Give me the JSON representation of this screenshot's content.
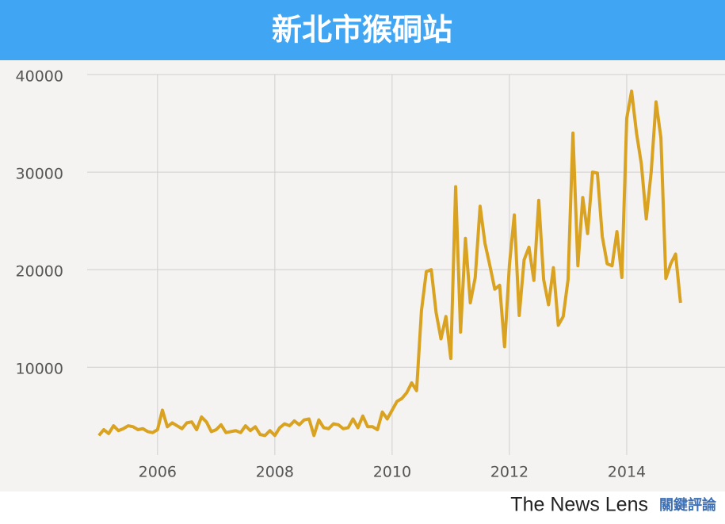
{
  "chart_data": {
    "type": "line",
    "title": "新北市猴硐站",
    "x": [
      2005.0,
      2005.083,
      2005.167,
      2005.25,
      2005.333,
      2005.417,
      2005.5,
      2005.583,
      2005.667,
      2005.75,
      2005.833,
      2005.917,
      2006.0,
      2006.083,
      2006.167,
      2006.25,
      2006.333,
      2006.417,
      2006.5,
      2006.583,
      2006.667,
      2006.75,
      2006.833,
      2006.917,
      2007.0,
      2007.083,
      2007.167,
      2007.25,
      2007.333,
      2007.417,
      2007.5,
      2007.583,
      2007.667,
      2007.75,
      2007.833,
      2007.917,
      2008.0,
      2008.083,
      2008.167,
      2008.25,
      2008.333,
      2008.417,
      2008.5,
      2008.583,
      2008.667,
      2008.75,
      2008.833,
      2008.917,
      2009.0,
      2009.083,
      2009.167,
      2009.25,
      2009.333,
      2009.417,
      2009.5,
      2009.583,
      2009.667,
      2009.75,
      2009.833,
      2009.917,
      2010.0,
      2010.083,
      2010.167,
      2010.25,
      2010.333,
      2010.417,
      2010.5,
      2010.583,
      2010.667,
      2010.75,
      2010.833,
      2010.917,
      2011.0,
      2011.083,
      2011.167,
      2011.25,
      2011.333,
      2011.417,
      2011.5,
      2011.583,
      2011.667,
      2011.75,
      2011.833,
      2011.917,
      2012.0,
      2012.083,
      2012.167,
      2012.25,
      2012.333,
      2012.417,
      2012.5,
      2012.583,
      2012.667,
      2012.75,
      2012.833,
      2012.917,
      2013.0,
      2013.083,
      2013.167,
      2013.25,
      2013.333,
      2013.417,
      2013.5,
      2013.583,
      2013.667,
      2013.75,
      2013.833,
      2013.917,
      2014.0,
      2014.083,
      2014.167,
      2014.25,
      2014.333,
      2014.417,
      2014.5,
      2014.583,
      2014.667,
      2014.75,
      2014.833,
      2014.917
    ],
    "series": [
      {
        "color": "#d9a321",
        "values": [
          3000,
          3600,
          3200,
          4000,
          3500,
          3700,
          4000,
          3900,
          3600,
          3700,
          3400,
          3300,
          3600,
          5600,
          3900,
          4300,
          4000,
          3700,
          4300,
          4400,
          3600,
          4900,
          4400,
          3400,
          3600,
          4100,
          3300,
          3400,
          3500,
          3300,
          4000,
          3500,
          3900,
          3100,
          3000,
          3500,
          3000,
          3800,
          4200,
          4000,
          4500,
          4100,
          4600,
          4700,
          3000,
          4600,
          3800,
          3700,
          4200,
          4100,
          3700,
          3800,
          4700,
          3800,
          5000,
          3900,
          3900,
          3600,
          5400,
          4700,
          5600,
          6500,
          6800,
          7400,
          8400,
          7600,
          15800,
          19800,
          20000,
          15600,
          12900,
          15200,
          10900,
          28500,
          13600,
          23200,
          16600,
          19200,
          26500,
          22700,
          20400,
          18000,
          18400,
          12100,
          20500,
          25600,
          15300,
          21000,
          22300,
          18900,
          27100,
          19000,
          16400,
          20200,
          14300,
          15200,
          19000,
          34000,
          20400,
          27400,
          23700,
          30000,
          29900,
          23400,
          20600,
          20400,
          23900,
          19200,
          35500,
          38300,
          34000,
          30800,
          25200,
          30000,
          37200,
          33500,
          19100,
          20600,
          21600,
          16600
        ]
      }
    ],
    "xlim": [
      2004.8,
      2015.5
    ],
    "xticks": [
      2006,
      2008,
      2010,
      2012,
      2014
    ],
    "ylim": [
      1000,
      40000
    ],
    "yticks": [
      10000,
      20000,
      30000,
      40000
    ],
    "grid": true
  },
  "footer": {
    "brand": "The News Lens",
    "brand_zh": "關鍵評論"
  }
}
